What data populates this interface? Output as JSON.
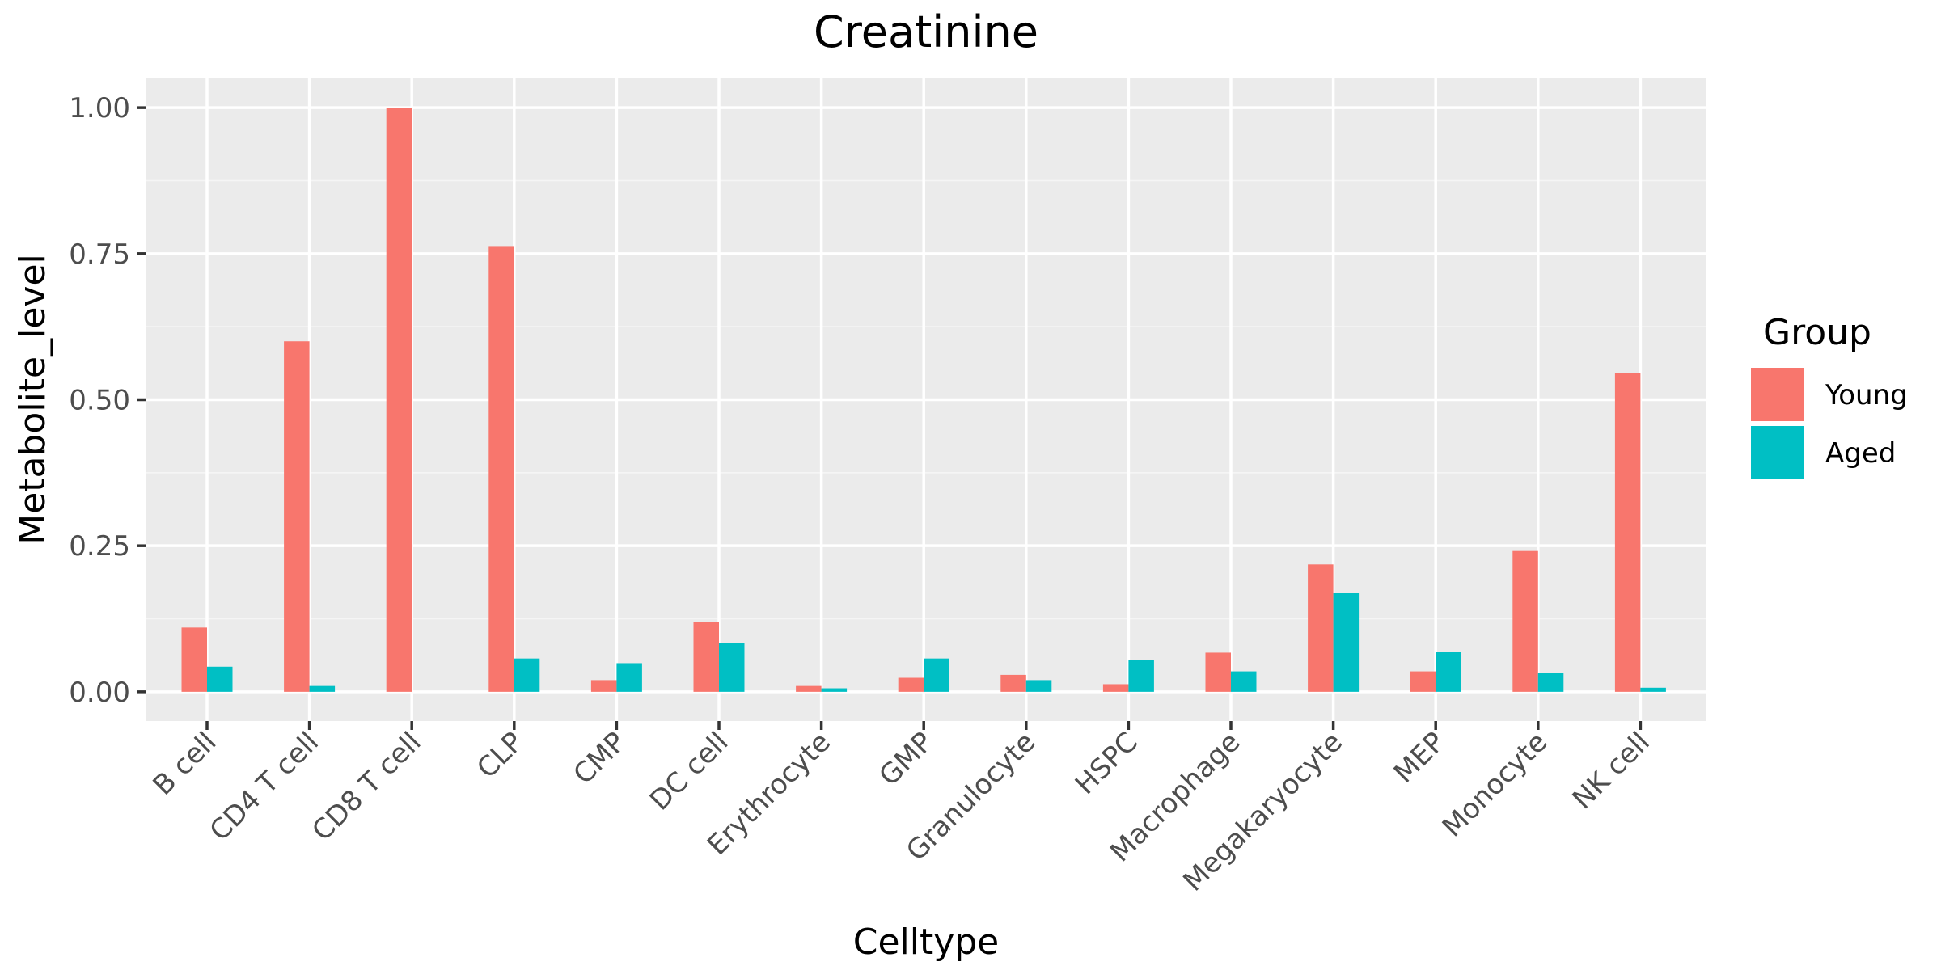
{
  "colors": {
    "panel_background": "#ebebeb",
    "grid_major": "#ffffff",
    "grid_minor": "#f5f5f5",
    "young": "#f8766d",
    "aged": "#00bfc4"
  },
  "chart_data": {
    "type": "bar",
    "title": "Creatinine",
    "xlabel": "Celltype",
    "ylabel": "Metabolite_level",
    "ylim": [
      -0.05,
      1.05
    ],
    "yticks": [
      0.0,
      0.25,
      0.5,
      0.75,
      1.0
    ],
    "ytick_labels": [
      "0.00",
      "0.25",
      "0.50",
      "0.75",
      "1.00"
    ],
    "grid": true,
    "legend": {
      "title": "Group",
      "position": "right"
    },
    "categories": [
      "B cell",
      "CD4 T cell",
      "CD8 T cell",
      "CLP",
      "CMP",
      "DC cell",
      "Erythrocyte",
      "GMP",
      "Granulocyte",
      "HSPC",
      "Macrophage",
      "Megakaryocyte",
      "MEP",
      "Monocyte",
      "NK cell"
    ],
    "series": [
      {
        "name": "Young",
        "color": "#f8766d",
        "values": [
          0.11,
          0.6,
          1.0,
          0.763,
          0.02,
          0.12,
          0.01,
          0.024,
          0.029,
          0.013,
          0.067,
          0.218,
          0.035,
          0.241,
          0.545
        ]
      },
      {
        "name": "Aged",
        "color": "#00bfc4",
        "values": [
          0.043,
          0.01,
          0.0,
          0.057,
          0.049,
          0.083,
          0.006,
          0.057,
          0.02,
          0.054,
          0.035,
          0.169,
          0.068,
          0.032,
          0.007
        ]
      }
    ]
  }
}
